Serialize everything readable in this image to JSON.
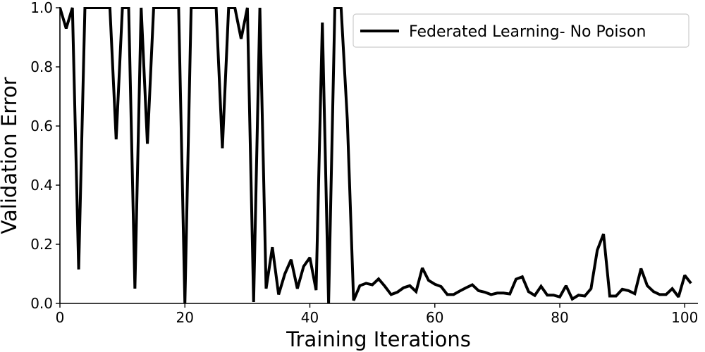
{
  "chart_data": {
    "type": "line",
    "title": "",
    "xlabel": "Training Iterations",
    "ylabel": "Validation Error",
    "xlim": [
      0,
      102
    ],
    "ylim": [
      0,
      1.0
    ],
    "xticks": [
      0,
      20,
      40,
      60,
      80,
      100
    ],
    "yticks": [
      0.0,
      0.2,
      0.4,
      0.6,
      0.8,
      1.0
    ],
    "xtick_labels": [
      "0",
      "20",
      "40",
      "60",
      "80",
      "100"
    ],
    "ytick_labels": [
      "0.0",
      "0.2",
      "0.4",
      "0.6",
      "0.8",
      "1.0"
    ],
    "grid": false,
    "legend_position": "top-right",
    "series": [
      {
        "name": "Federated Learning- No Poison",
        "color": "#000000",
        "x": [
          0,
          1,
          2,
          3,
          4,
          5,
          6,
          7,
          8,
          9,
          10,
          11,
          12,
          13,
          14,
          15,
          16,
          17,
          18,
          19,
          20,
          21,
          22,
          23,
          24,
          25,
          26,
          27,
          28,
          29,
          30,
          31,
          32,
          33,
          34,
          35,
          36,
          37,
          38,
          39,
          40,
          41,
          42,
          43,
          44,
          45,
          46,
          47,
          48,
          49,
          50,
          51,
          52,
          53,
          54,
          55,
          56,
          57,
          58,
          59,
          60,
          61,
          62,
          63,
          64,
          65,
          66,
          67,
          68,
          69,
          70,
          71,
          72,
          73,
          74,
          75,
          76,
          77,
          78,
          79,
          80,
          81,
          82,
          83,
          84,
          85,
          86,
          87,
          88,
          89,
          90,
          91,
          92,
          93,
          94,
          95,
          96,
          97,
          98,
          99,
          100,
          101
        ],
        "values": [
          1.0,
          0.93,
          1.0,
          0.115,
          1.0,
          1.0,
          1.0,
          1.0,
          1.0,
          0.555,
          1.0,
          1.0,
          0.05,
          1.0,
          0.54,
          1.0,
          1.0,
          1.0,
          1.0,
          1.0,
          0.0,
          1.0,
          1.0,
          1.0,
          1.0,
          1.0,
          0.525,
          1.0,
          1.0,
          0.895,
          1.0,
          0.005,
          1.0,
          0.05,
          0.19,
          0.03,
          0.1,
          0.148,
          0.05,
          0.125,
          0.155,
          0.045,
          0.95,
          0.0,
          1.0,
          1.0,
          0.62,
          0.01,
          0.06,
          0.068,
          0.063,
          0.083,
          0.058,
          0.03,
          0.038,
          0.053,
          0.06,
          0.04,
          0.12,
          0.078,
          0.065,
          0.057,
          0.03,
          0.03,
          0.042,
          0.053,
          0.063,
          0.043,
          0.038,
          0.03,
          0.035,
          0.035,
          0.032,
          0.082,
          0.09,
          0.04,
          0.027,
          0.058,
          0.028,
          0.028,
          0.022,
          0.06,
          0.015,
          0.028,
          0.025,
          0.05,
          0.18,
          0.235,
          0.025,
          0.025,
          0.048,
          0.043,
          0.033,
          0.118,
          0.06,
          0.04,
          0.03,
          0.03,
          0.05,
          0.022,
          0.095,
          0.068
        ]
      }
    ]
  }
}
